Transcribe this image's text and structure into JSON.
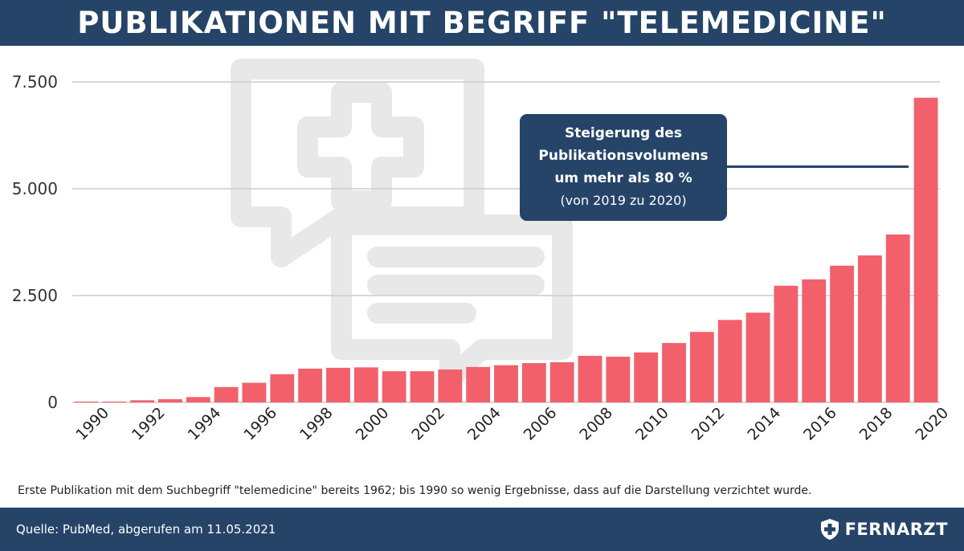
{
  "header": {
    "title": "PUBLIKATIONEN MIT BEGRIFF \"TELEMEDICINE\""
  },
  "callout": {
    "line1": "Steigerung des",
    "line2": "Publikationsvolumens",
    "line3": "um mehr als 80 %",
    "line4": "(von 2019 zu 2020)"
  },
  "footnote": "Erste Publikation mit dem Suchbegriff \"telemedicine\" bereits 1962; bis 1990 so wenig Ergebnisse, dass auf die Darstellung verzichtet wurde.",
  "footer": {
    "source": "Quelle: PubMed, abgerufen am 11.05.2021",
    "brand": "FERNARZT"
  },
  "colors": {
    "bar": "#f2606c",
    "header": "#254468",
    "grid": "#cccccc",
    "watermark": "#e8e8e8"
  },
  "icons": [
    "telemedicine-chat-watermark-icon",
    "fernarzt-shield-cross-icon"
  ],
  "chart_data": {
    "type": "bar",
    "title": "PUBLIKATIONEN MIT BEGRIFF \"TELEMEDICINE\"",
    "xlabel": "",
    "ylabel": "",
    "categories": [
      "1990",
      "1991",
      "1992",
      "1993",
      "1994",
      "1995",
      "1996",
      "1997",
      "1998",
      "1999",
      "2000",
      "2001",
      "2002",
      "2003",
      "2004",
      "2005",
      "2006",
      "2007",
      "2008",
      "2009",
      "2010",
      "2011",
      "2012",
      "2013",
      "2014",
      "2015",
      "2016",
      "2017",
      "2018",
      "2019",
      "2020"
    ],
    "values": [
      20,
      20,
      50,
      75,
      125,
      360,
      460,
      660,
      790,
      810,
      820,
      730,
      730,
      770,
      830,
      870,
      920,
      940,
      1090,
      1070,
      1170,
      1390,
      1650,
      1930,
      2100,
      2730,
      2880,
      3200,
      3440,
      3930,
      7130
    ],
    "x_tick_labels": [
      "1990",
      "1992",
      "1994",
      "1996",
      "1998",
      "2000",
      "2002",
      "2004",
      "2006",
      "2008",
      "2010",
      "2012",
      "2014",
      "2016",
      "2018",
      "2020"
    ],
    "y_ticks": [
      0,
      2500,
      5000,
      7500
    ],
    "y_tick_labels": [
      "0",
      "2.500",
      "5.000",
      "7.500"
    ],
    "ylim": [
      0,
      7500
    ],
    "grid": true,
    "legend": "none"
  }
}
